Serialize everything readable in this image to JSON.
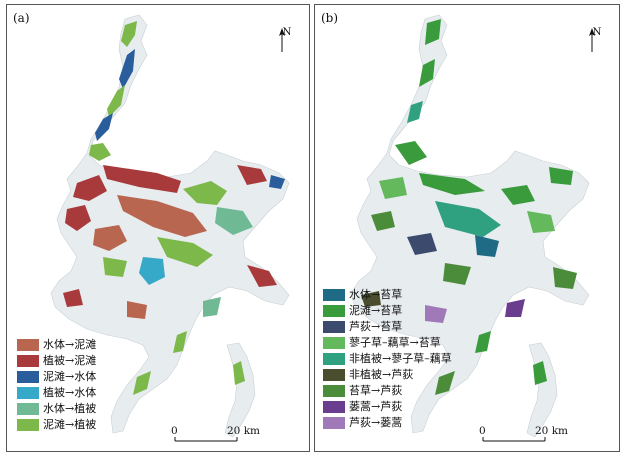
{
  "panels": [
    {
      "label": "(a)",
      "north": "N",
      "scale": {
        "zero": "0",
        "max": "20 km"
      },
      "legend": [
        {
          "label": "水体→泥滩",
          "color": "#b8664f"
        },
        {
          "label": "植被→泥滩",
          "color": "#a83a3c"
        },
        {
          "label": "泥滩→水体",
          "color": "#2a5d9c"
        },
        {
          "label": "植被→水体",
          "color": "#36a8c8"
        },
        {
          "label": "水体→植被",
          "color": "#6fba94"
        },
        {
          "label": "泥滩→植被",
          "color": "#7cb84a"
        }
      ]
    },
    {
      "label": "(b)",
      "north": "N",
      "scale": {
        "zero": "0",
        "max": "20 km"
      },
      "legend": [
        {
          "label": "水体→苔草",
          "color": "#1f6a84"
        },
        {
          "label": "泥滩→苔草",
          "color": "#3a9b3c"
        },
        {
          "label": "芦荻→苔草",
          "color": "#3c4a6e"
        },
        {
          "label": "蓼子草–藕草→苔草",
          "color": "#63b95c"
        },
        {
          "label": "非植被→蓼子草–藕草",
          "color": "#2fa080"
        },
        {
          "label": "非植被→芦荻",
          "color": "#4a4e2e"
        },
        {
          "label": "苔草→芦荻",
          "color": "#4a8c3a"
        },
        {
          "label": "蒌蒿→芦荻",
          "color": "#6b3d8e"
        },
        {
          "label": "芦荻→蒌蒿",
          "color": "#a07ab8"
        }
      ]
    }
  ],
  "colors": {
    "lake": "#e7ecef",
    "border": "#555555"
  }
}
